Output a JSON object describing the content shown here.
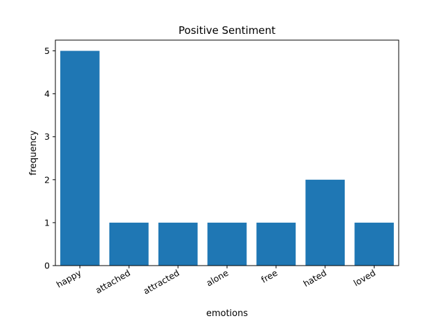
{
  "chart_data": {
    "type": "bar",
    "title": "Positive Sentiment",
    "xlabel": "emotions",
    "ylabel": "frequency",
    "categories": [
      "happy",
      "attached",
      "attracted",
      "alone",
      "free",
      "hated",
      "loved"
    ],
    "values": [
      5,
      1,
      1,
      1,
      1,
      2,
      1
    ],
    "ylim": [
      0,
      5.25
    ],
    "yticks": [
      0,
      1,
      2,
      3,
      4,
      5
    ],
    "grid": false,
    "bar_color": "#1f77b4"
  }
}
